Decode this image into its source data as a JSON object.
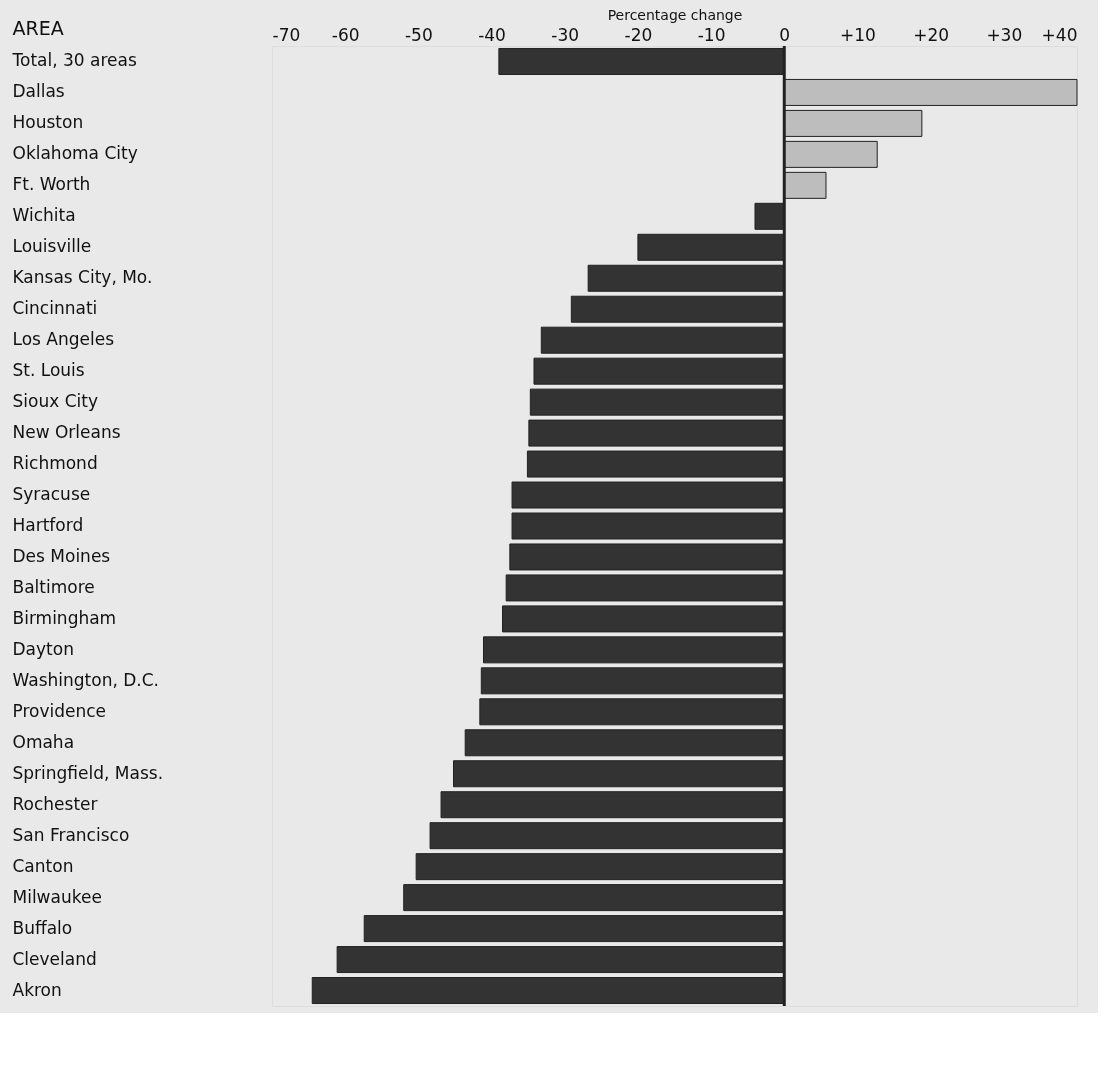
{
  "chart_data": {
    "type": "bar",
    "orientation": "horizontal",
    "xlabel": "Percentage change",
    "ylabel": "AREA",
    "categories": [
      "Total, 30 areas",
      "Dallas",
      "Houston",
      "Oklahoma City",
      "Ft. Worth",
      "Wichita",
      "Louisville",
      "Kansas City, Mo.",
      "Cincinnati",
      "Los Angeles",
      "St. Louis",
      "Sioux City",
      "New Orleans",
      "Richmond",
      "Syracuse",
      "Hartford",
      "Des Moines",
      "Baltimore",
      "Birmingham",
      "Dayton",
      "Washington, D.C.",
      "Providence",
      "Omaha",
      "Springfield, Mass.",
      "Rochester",
      "San Francisco",
      "Canton",
      "Milwaukee",
      "Buffalo",
      "Cleveland",
      "Akron"
    ],
    "values": [
      -39,
      40,
      18.8,
      12.7,
      5.7,
      -4,
      -20,
      -26.8,
      -29.1,
      -33.2,
      -34.2,
      -34.7,
      -34.9,
      -35.1,
      -37.2,
      -37.2,
      -37.5,
      -38,
      -38.5,
      -41.1,
      -41.4,
      -41.6,
      -43.6,
      -45.2,
      -46.9,
      -48.4,
      -50.3,
      -52,
      -57.4,
      -61.1,
      -64.5
    ],
    "colors": [
      "#333333",
      "#bdbdbd",
      "#bdbdbd",
      "#bdbdbd",
      "#bdbdbd",
      "#333333",
      "#333333",
      "#333333",
      "#333333",
      "#333333",
      "#333333",
      "#333333",
      "#333333",
      "#333333",
      "#333333",
      "#333333",
      "#333333",
      "#333333",
      "#333333",
      "#333333",
      "#333333",
      "#333333",
      "#333333",
      "#333333",
      "#333333",
      "#333333",
      "#333333",
      "#333333",
      "#333333",
      "#333333",
      "#333333"
    ],
    "xlim": [
      -70,
      40
    ],
    "xticks": [
      -70,
      -60,
      -50,
      -40,
      -30,
      -20,
      -10,
      0,
      {
        "value": 10,
        "label": "+10"
      },
      {
        "value": 20,
        "label": "+20"
      },
      {
        "value": 30,
        "label": "+30"
      },
      {
        "value": 40,
        "label": "+40"
      }
    ],
    "ref_lines": [
      {
        "axis": "x",
        "value": 0,
        "color": "#222222"
      }
    ],
    "grid": false
  }
}
